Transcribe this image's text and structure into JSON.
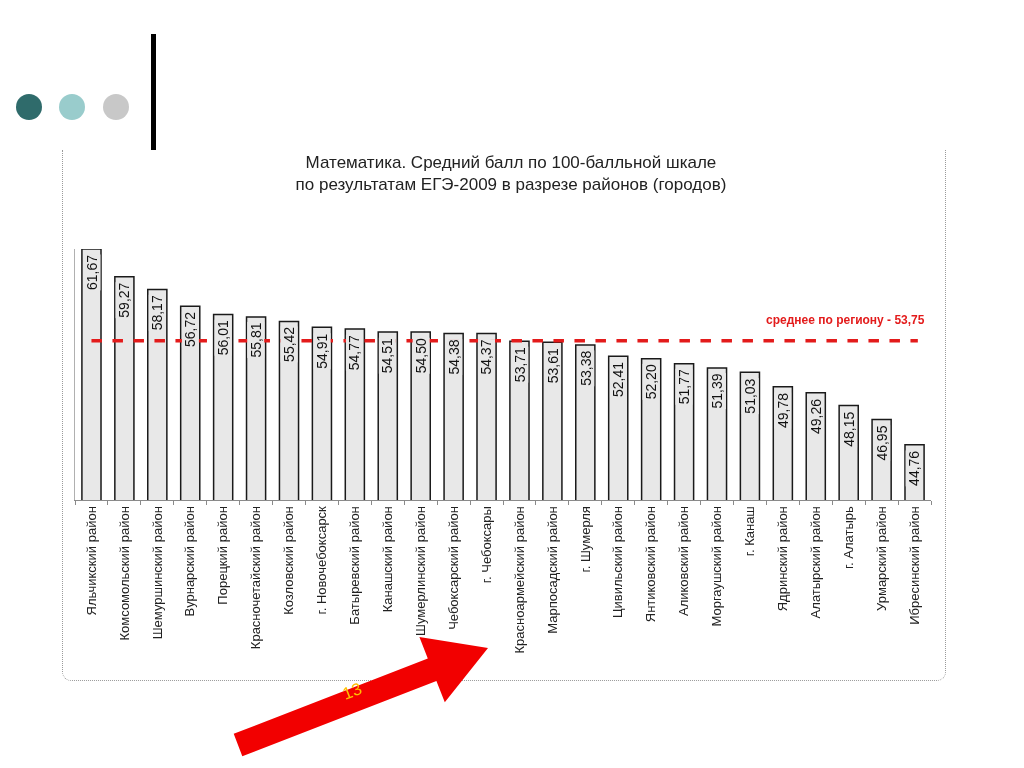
{
  "chart_data": {
    "type": "bar",
    "title": "Математика. Средний балл по 100-балльной шкале\nпо результатам ЕГЭ-2009 в разрезе районов (городов)",
    "categories": [
      "Яльчикский район",
      "Комсомольский район",
      "Шемуршинский район",
      "Вурнарский район",
      "Порецкий район",
      "Красночетайский район",
      "Козловский район",
      "г. Новочебоксарск",
      "Батыревский район",
      "Канашский район",
      "Шумерлинский район",
      "Чебоксарский район",
      "г. Чебоксары",
      "Красноармейский район",
      "Марпосадский район",
      "г. Шумерля",
      "Цивильский район",
      "Янтиковский район",
      "Аликовский район",
      "Моргаушский район",
      "г. Канаш",
      "Ядринский район",
      "Алатырский район",
      "г. Алатырь",
      "Урмарский район",
      "Ибресинский район"
    ],
    "values": [
      61.67,
      59.27,
      58.17,
      56.72,
      56.01,
      55.81,
      55.42,
      54.91,
      54.77,
      54.51,
      54.5,
      54.38,
      54.37,
      53.71,
      53.61,
      53.38,
      52.41,
      52.2,
      51.77,
      51.39,
      51.03,
      49.78,
      49.26,
      48.15,
      46.95,
      44.76
    ],
    "value_labels": [
      "61,67",
      "59,27",
      "58,17",
      "56,72",
      "56,01",
      "55,81",
      "55,42",
      "54,91",
      "54,77",
      "54,51",
      "54,50",
      "54,38",
      "54,37",
      "53,71",
      "53,61",
      "53,38",
      "52,41",
      "52,20",
      "51,77",
      "51,39",
      "51,03",
      "49,78",
      "49,26",
      "48,15",
      "46,95",
      "44,76"
    ],
    "color": "#e8e8e8",
    "ylim": [
      40,
      61.67
    ],
    "tick_labels": "x",
    "grid": false,
    "ref_lines": [
      {
        "axis": "y",
        "value": 53.75,
        "label": "среднее по региону - 53,75",
        "color": "#e31b1b",
        "line_style": "dashed"
      }
    ],
    "annotations": [
      "13"
    ]
  }
}
